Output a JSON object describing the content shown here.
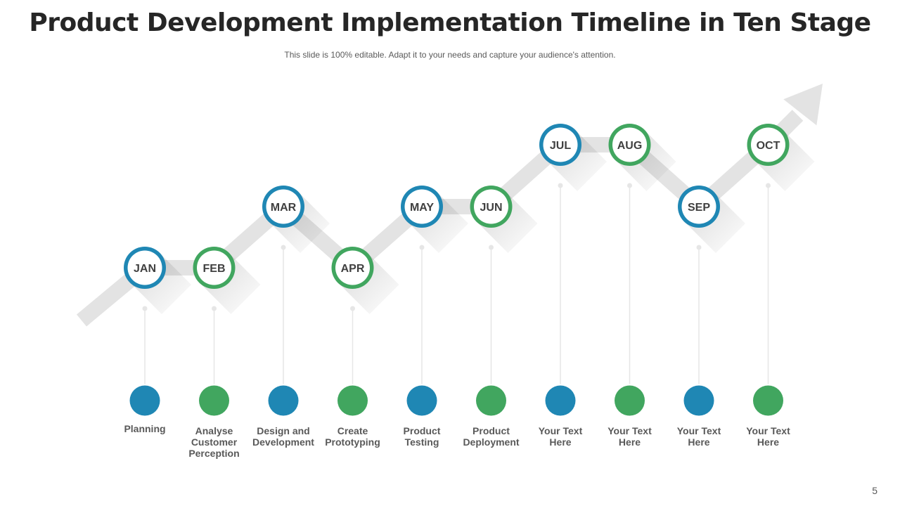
{
  "slide": {
    "title": "Product Development Implementation Timeline in Ten Stage",
    "subtitle": "This slide is 100% editable. Adapt it to your needs and capture your audience's attention.",
    "page_number": "5"
  },
  "colors": {
    "blue": "#1f87b4",
    "green": "#41a65f",
    "arrow": "#e3e3e3",
    "connector": "#e6e6e6",
    "text_dark": "#404040",
    "text_label": "#595959"
  },
  "stages": [
    {
      "month": "JAN",
      "label": "Planning",
      "color": "blue",
      "level": 0
    },
    {
      "month": "FEB",
      "label": "Analyse\nCustomer\nPerception",
      "color": "green",
      "level": 0
    },
    {
      "month": "MAR",
      "label": "Design and\nDevelopment",
      "color": "blue",
      "level": 1
    },
    {
      "month": "APR",
      "label": "Create\nPrototyping",
      "color": "green",
      "level": 0
    },
    {
      "month": "MAY",
      "label": "Product\nTesting",
      "color": "blue",
      "level": 1
    },
    {
      "month": "JUN",
      "label": "Product\nDeployment",
      "color": "green",
      "level": 1
    },
    {
      "month": "JUL",
      "label": "Your Text\nHere",
      "color": "blue",
      "level": 2
    },
    {
      "month": "AUG",
      "label": "Your Text\nHere",
      "color": "green",
      "level": 2
    },
    {
      "month": "SEP",
      "label": "Your Text\nHere",
      "color": "blue",
      "level": 1
    },
    {
      "month": "OCT",
      "label": "Your Text\nHere",
      "color": "green",
      "level": 2
    }
  ]
}
